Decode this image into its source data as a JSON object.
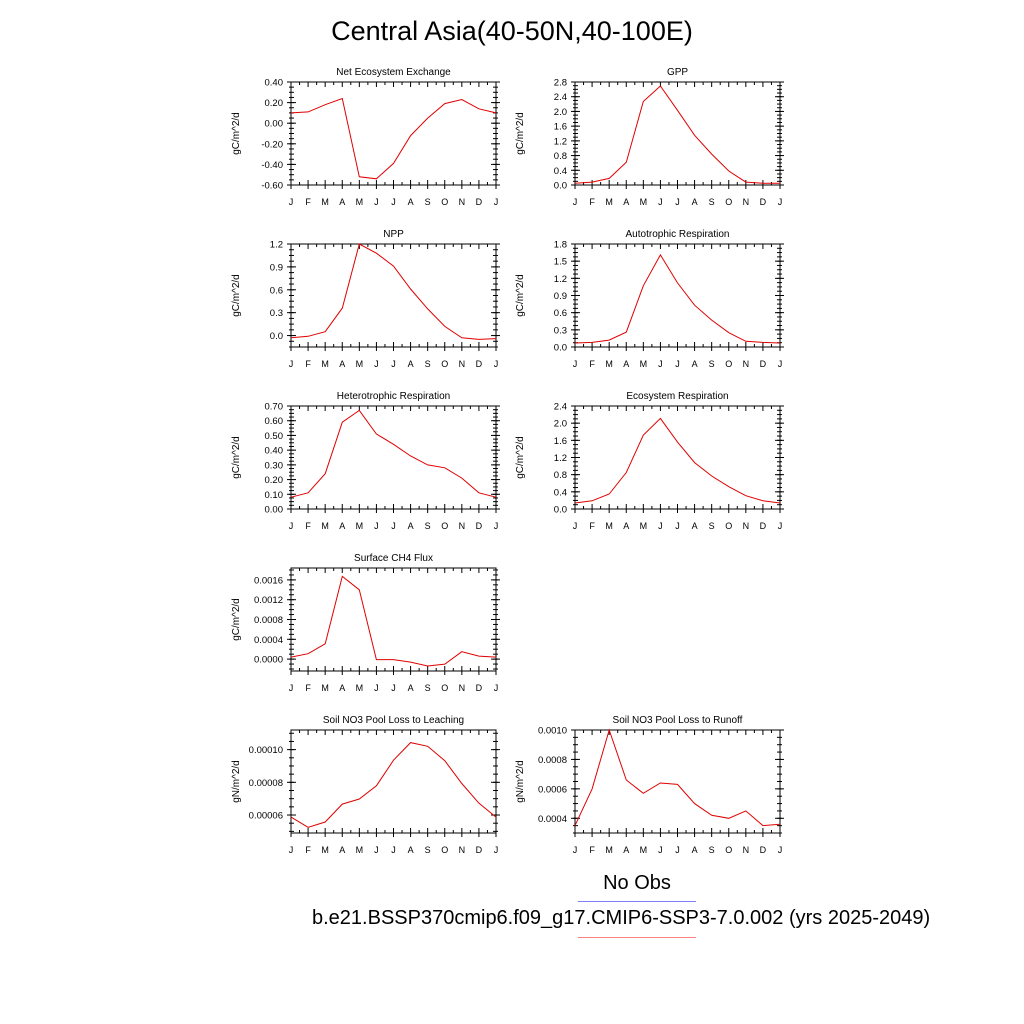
{
  "title": "Central Asia(40-50N,40-100E)",
  "legend": {
    "obs_label": "No Obs",
    "case_label": "b.e21.BSSP370cmip6.f09_g17.CMIP6-SSP3-7.0.002 (yrs 2025-2049)",
    "obs_color": "#8080ff",
    "case_color": "#ff8080"
  },
  "line_color": "#e00000",
  "chart_data": [
    {
      "type": "line",
      "title": "Net Ecosystem Exchange",
      "ylabel": "gC/m^2/d",
      "categories": [
        "J",
        "F",
        "M",
        "A",
        "M",
        "J",
        "J",
        "A",
        "S",
        "O",
        "N",
        "D",
        "J"
      ],
      "values": [
        0.1,
        0.11,
        0.18,
        0.24,
        -0.52,
        -0.54,
        -0.39,
        -0.12,
        0.05,
        0.19,
        0.23,
        0.14,
        0.1
      ],
      "ylim": [
        -0.6,
        0.4
      ],
      "yticks": [
        -0.6,
        -0.4,
        -0.2,
        0.0,
        0.2,
        0.4
      ],
      "ytick_labels": [
        "-0.60",
        "-0.40",
        "-0.20",
        "0.00",
        "0.20",
        "0.40"
      ]
    },
    {
      "type": "line",
      "title": "GPP",
      "ylabel": "gC/m^2/d",
      "categories": [
        "J",
        "F",
        "M",
        "A",
        "M",
        "J",
        "J",
        "A",
        "S",
        "O",
        "N",
        "D",
        "J"
      ],
      "values": [
        0.05,
        0.08,
        0.18,
        0.62,
        2.27,
        2.69,
        2.03,
        1.35,
        0.84,
        0.38,
        0.08,
        0.05,
        0.05
      ],
      "ylim": [
        0,
        2.8
      ],
      "yticks": [
        0.0,
        0.4,
        0.8,
        1.2,
        1.6,
        2.0,
        2.4,
        2.8
      ],
      "ytick_labels": [
        "0.0",
        "0.4",
        "0.8",
        "1.2",
        "1.6",
        "2.0",
        "2.4",
        "2.8"
      ]
    },
    {
      "type": "line",
      "title": "NPP",
      "ylabel": "gC/m^2/d",
      "categories": [
        "J",
        "F",
        "M",
        "A",
        "M",
        "J",
        "J",
        "A",
        "S",
        "O",
        "N",
        "D",
        "J"
      ],
      "values": [
        -0.03,
        -0.01,
        0.05,
        0.36,
        1.2,
        1.08,
        0.91,
        0.61,
        0.35,
        0.12,
        -0.03,
        -0.05,
        -0.04
      ],
      "ylim": [
        -0.15,
        1.2
      ],
      "yticks": [
        0.0,
        0.3,
        0.6,
        0.9,
        1.2
      ],
      "ytick_labels": [
        "0.0",
        "0.3",
        "0.6",
        "0.9",
        "1.2"
      ]
    },
    {
      "type": "line",
      "title": "Autotrophic Respiration",
      "ylabel": "gC/m^2/d",
      "categories": [
        "J",
        "F",
        "M",
        "A",
        "M",
        "J",
        "J",
        "A",
        "S",
        "O",
        "N",
        "D",
        "J"
      ],
      "values": [
        0.07,
        0.08,
        0.12,
        0.26,
        1.07,
        1.61,
        1.12,
        0.73,
        0.47,
        0.25,
        0.1,
        0.08,
        0.07
      ],
      "ylim": [
        0,
        1.8
      ],
      "yticks": [
        0.0,
        0.3,
        0.6,
        0.9,
        1.2,
        1.5,
        1.8
      ],
      "ytick_labels": [
        "0.0",
        "0.3",
        "0.6",
        "0.9",
        "1.2",
        "1.5",
        "1.8"
      ]
    },
    {
      "type": "line",
      "title": "Heterotrophic Respiration",
      "ylabel": "gC/m^2/d",
      "categories": [
        "J",
        "F",
        "M",
        "A",
        "M",
        "J",
        "J",
        "A",
        "S",
        "O",
        "N",
        "D",
        "J"
      ],
      "values": [
        0.08,
        0.11,
        0.24,
        0.59,
        0.67,
        0.51,
        0.44,
        0.36,
        0.3,
        0.28,
        0.21,
        0.11,
        0.08
      ],
      "ylim": [
        0,
        0.7
      ],
      "yticks": [
        0.0,
        0.1,
        0.2,
        0.3,
        0.4,
        0.5,
        0.6,
        0.7
      ],
      "ytick_labels": [
        "0.00",
        "0.10",
        "0.20",
        "0.30",
        "0.40",
        "0.50",
        "0.60",
        "0.70"
      ]
    },
    {
      "type": "line",
      "title": "Ecosystem Respiration",
      "ylabel": "gC/m^2/d",
      "categories": [
        "J",
        "F",
        "M",
        "A",
        "M",
        "J",
        "J",
        "A",
        "S",
        "O",
        "N",
        "D",
        "J"
      ],
      "values": [
        0.14,
        0.19,
        0.35,
        0.85,
        1.72,
        2.11,
        1.56,
        1.08,
        0.77,
        0.52,
        0.31,
        0.19,
        0.14
      ],
      "ylim": [
        0,
        2.4
      ],
      "yticks": [
        0.0,
        0.4,
        0.8,
        1.2,
        1.6,
        2.0,
        2.4
      ],
      "ytick_labels": [
        "0.0",
        "0.4",
        "0.8",
        "1.2",
        "1.6",
        "2.0",
        "2.4"
      ]
    },
    {
      "type": "line",
      "title": "Surface CH4 Flux",
      "ylabel": "gC/m^2/d",
      "categories": [
        "J",
        "F",
        "M",
        "A",
        "M",
        "J",
        "J",
        "A",
        "S",
        "O",
        "N",
        "D",
        "J"
      ],
      "values": [
        4e-05,
        0.00011,
        0.00031,
        0.00167,
        0.0014,
        -1e-05,
        -1e-05,
        -6e-05,
        -0.00014,
        -0.0001,
        0.00015,
        6e-05,
        4e-05
      ],
      "ylim": [
        -0.00024,
        0.00184
      ],
      "yticks": [
        0.0,
        0.0004,
        0.0008,
        0.0012,
        0.0016
      ],
      "ytick_labels": [
        "0.0000",
        "0.0004",
        "0.0008",
        "0.0012",
        "0.0016"
      ]
    },
    {
      "type": "line",
      "title": "Soil NO3 Pool Loss to Leaching",
      "ylabel": "gN/m^2/d",
      "categories": [
        "J",
        "F",
        "M",
        "A",
        "M",
        "J",
        "J",
        "A",
        "S",
        "O",
        "N",
        "D",
        "J"
      ],
      "values": [
        5.87e-05,
        5.25e-05,
        5.57e-05,
        6.67e-05,
        6.98e-05,
        7.79e-05,
        9.35e-05,
        0.0001043,
        0.000102,
        9.32e-05,
        7.93e-05,
        6.72e-05,
        5.87e-05
      ],
      "ylim": [
        4.9e-05,
        0.000112
      ],
      "yticks": [
        6e-05,
        8e-05,
        0.0001
      ],
      "ytick_labels": [
        "0.00006",
        "0.00008",
        "0.00010"
      ]
    },
    {
      "type": "line",
      "title": "Soil NO3 Pool Loss to Runoff",
      "ylabel": "gN/m^2/d",
      "categories": [
        "J",
        "F",
        "M",
        "A",
        "M",
        "J",
        "J",
        "A",
        "S",
        "O",
        "N",
        "D",
        "J"
      ],
      "values": [
        0.00035,
        0.0006,
        0.001,
        0.00066,
        0.00057,
        0.00064,
        0.00063,
        0.0005,
        0.00042,
        0.0004,
        0.00045,
        0.00035,
        0.00036
      ],
      "ylim": [
        0.0003,
        0.001
      ],
      "yticks": [
        0.0004,
        0.0006,
        0.0008,
        0.001
      ],
      "ytick_labels": [
        "0.0004",
        "0.0006",
        "0.0008",
        "0.0010"
      ]
    }
  ]
}
